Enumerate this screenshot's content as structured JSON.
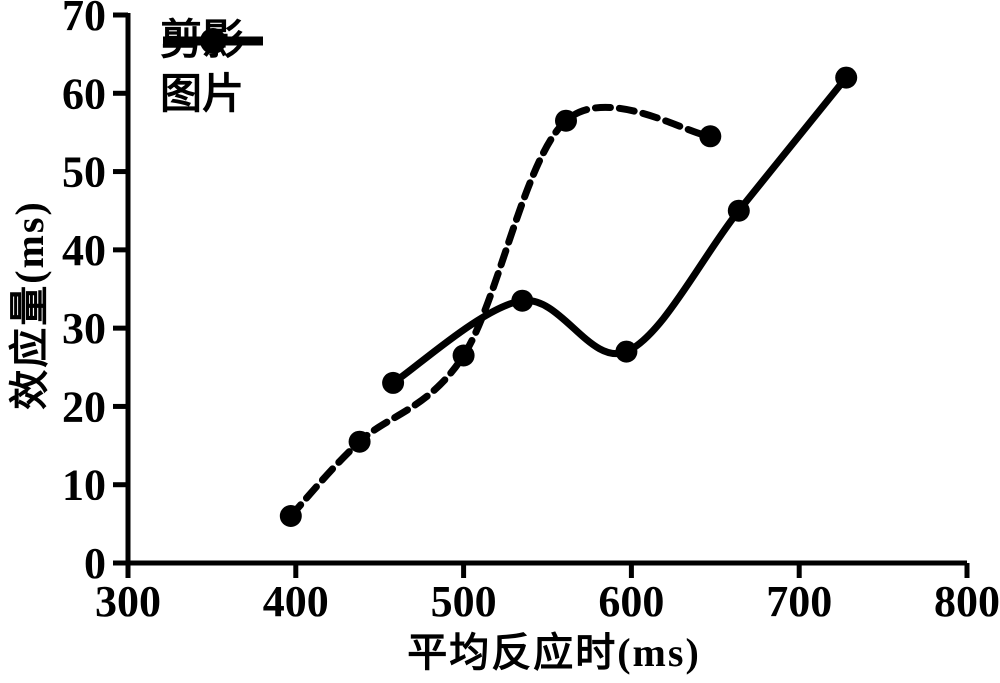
{
  "figure": {
    "background_color": "#ffffff",
    "ink_color": "#000000"
  },
  "chart_data": {
    "type": "line",
    "title": "",
    "xlabel": "平均反应时(ms)",
    "ylabel": "效应量(ms)",
    "xlim": [
      300,
      800
    ],
    "ylim": [
      0,
      70
    ],
    "x_ticks": [
      300,
      400,
      500,
      600,
      700,
      800
    ],
    "y_ticks": [
      0,
      10,
      20,
      30,
      40,
      50,
      60,
      70
    ],
    "grid": false,
    "legend_position": "top-left",
    "series": [
      {
        "name": "剪影",
        "line_style": "solid",
        "marker": "filled-circle",
        "color": "#000000",
        "points": [
          [
            458,
            23
          ],
          [
            535,
            33.5
          ],
          [
            597,
            27
          ],
          [
            664,
            45
          ],
          [
            728,
            62
          ]
        ]
      },
      {
        "name": "图片",
        "line_style": "dashed",
        "marker": "filled-circle",
        "color": "#000000",
        "points": [
          [
            397,
            6
          ],
          [
            438,
            15.5
          ],
          [
            500,
            26.5
          ],
          [
            561,
            56.5
          ],
          [
            647,
            54.5
          ]
        ]
      }
    ]
  }
}
